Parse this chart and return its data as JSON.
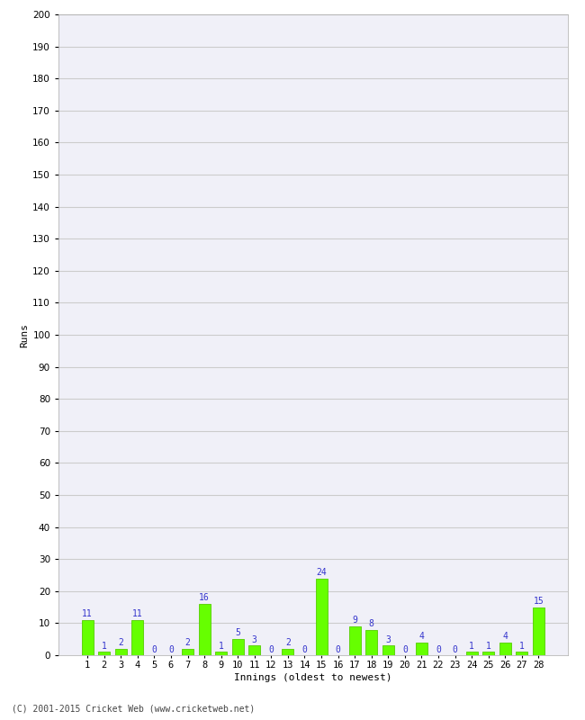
{
  "innings": [
    1,
    2,
    3,
    4,
    5,
    6,
    7,
    8,
    9,
    10,
    11,
    12,
    13,
    14,
    15,
    16,
    17,
    18,
    19,
    20,
    21,
    22,
    23,
    24,
    25,
    26,
    27,
    28
  ],
  "runs": [
    11,
    1,
    2,
    11,
    0,
    0,
    2,
    16,
    1,
    5,
    3,
    0,
    2,
    0,
    24,
    0,
    9,
    8,
    3,
    0,
    4,
    0,
    0,
    1,
    1,
    4,
    1,
    15
  ],
  "bar_color": "#66ff00",
  "bar_edge_color": "#55cc00",
  "label_color": "#3333cc",
  "ylabel": "Runs",
  "xlabel": "Innings (oldest to newest)",
  "ylim": [
    0,
    200
  ],
  "yticks": [
    0,
    10,
    20,
    30,
    40,
    50,
    60,
    70,
    80,
    90,
    100,
    110,
    120,
    130,
    140,
    150,
    160,
    170,
    180,
    190,
    200
  ],
  "grid_color": "#cccccc",
  "bg_color": "#ffffff",
  "plot_bg_color": "#f0f0f8",
  "footer": "(C) 2001-2015 Cricket Web (www.cricketweb.net)",
  "footer_color": "#444444",
  "label_fontsize": 7,
  "tick_fontsize": 7.5,
  "ylabel_fontsize": 8,
  "xlabel_fontsize": 8,
  "footer_fontsize": 7
}
